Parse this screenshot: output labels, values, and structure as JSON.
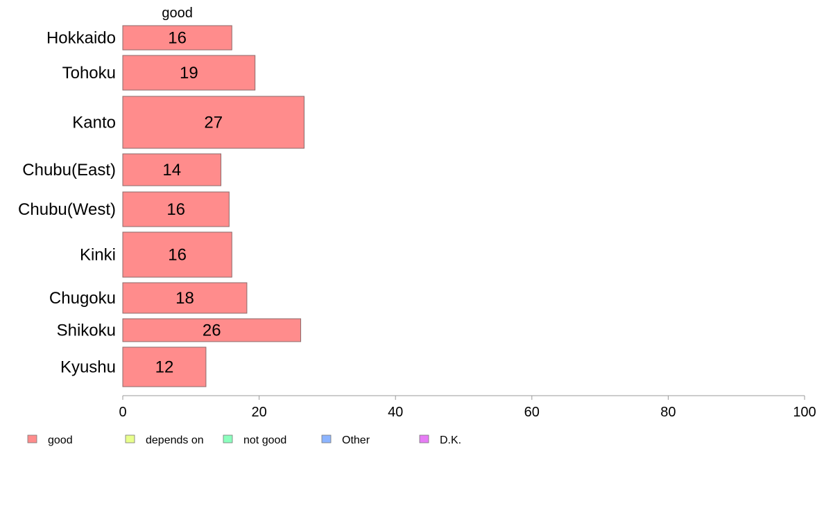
{
  "chart_data": {
    "type": "bar",
    "orientation": "horizontal",
    "stacked": true,
    "categories": [
      "Hokkaido",
      "Tohoku",
      "Kanto",
      "Chubu(East)",
      "Chubu(West)",
      "Kinki",
      "Chugoku",
      "Shikoku",
      "Kyushu"
    ],
    "series": [
      {
        "name": "good",
        "color": "#ff8c8c",
        "values": [
          16,
          19.4,
          26.6,
          14.4,
          15.6,
          16,
          18.2,
          26.1,
          12.2
        ]
      }
    ],
    "data_labels": [
      "16",
      "19",
      "27",
      "14",
      "16",
      "16",
      "18",
      "26",
      "12"
    ],
    "series_header": "good",
    "xlim": [
      0,
      100
    ],
    "xticks": [
      "0",
      "20",
      "40",
      "60",
      "80",
      "100"
    ],
    "grid": false,
    "legend_position": "bottom",
    "legend": [
      {
        "name": "good",
        "color": "#ff8c8c"
      },
      {
        "name": "depends on",
        "color": "#e8ff8c"
      },
      {
        "name": "not good",
        "color": "#8cffbe"
      },
      {
        "name": "Other",
        "color": "#8cb4ff"
      },
      {
        "name": "D.K.",
        "color": "#e67cf5"
      }
    ],
    "bar_border_color": "#8a6a6a",
    "axis_color": "#999999"
  }
}
